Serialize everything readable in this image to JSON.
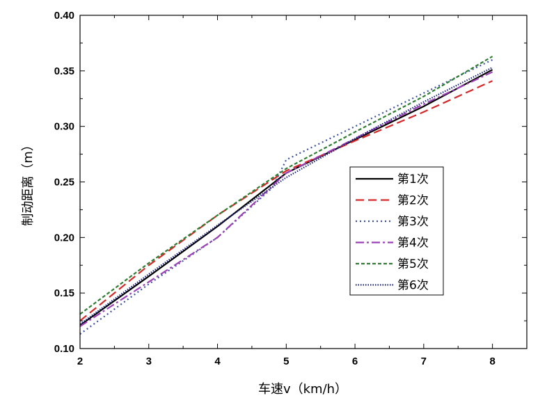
{
  "chart_data": {
    "type": "line",
    "title": "",
    "xlabel": "车速v（km/h）",
    "ylabel": "制动距离（m）",
    "xlim": [
      2,
      8.5
    ],
    "ylim": [
      0.1,
      0.4
    ],
    "x_ticks": [
      "2",
      "3",
      "4",
      "5",
      "6",
      "7",
      "8"
    ],
    "y_ticks": [
      "0.10",
      "0.15",
      "0.20",
      "0.25",
      "0.30",
      "0.35",
      "0.40"
    ],
    "legend_position": "right-center",
    "series": [
      {
        "name": "第1次",
        "color": "#000000",
        "dash": "solid",
        "x": [
          2,
          3,
          4,
          5,
          6,
          7,
          8
        ],
        "y": [
          0.121,
          0.165,
          0.21,
          0.258,
          0.288,
          0.318,
          0.351
        ]
      },
      {
        "name": "第2次",
        "color": "#d62728",
        "dash": "dash",
        "x": [
          2,
          3,
          4,
          5,
          6,
          7,
          8
        ],
        "y": [
          0.125,
          0.175,
          0.22,
          0.26,
          0.287,
          0.313,
          0.341
        ]
      },
      {
        "name": "第3次",
        "color": "#3a4fa0",
        "dash": "dot",
        "x": [
          2,
          3,
          4,
          4.8,
          5,
          6,
          7,
          8
        ],
        "y": [
          0.113,
          0.158,
          0.2,
          0.245,
          0.27,
          0.3,
          0.33,
          0.36
        ]
      },
      {
        "name": "第4次",
        "color": "#9b3fb5",
        "dash": "dashdot",
        "x": [
          2,
          3,
          4,
          5,
          6,
          7,
          8
        ],
        "y": [
          0.12,
          0.16,
          0.2,
          0.258,
          0.289,
          0.32,
          0.349
        ]
      },
      {
        "name": "第5次",
        "color": "#2e7d32",
        "dash": "shortdash",
        "x": [
          2,
          3,
          4,
          5,
          6,
          7,
          8
        ],
        "y": [
          0.131,
          0.177,
          0.22,
          0.262,
          0.295,
          0.327,
          0.363
        ]
      },
      {
        "name": "第6次",
        "color": "#1a237e",
        "dash": "densedot",
        "x": [
          2,
          3,
          4,
          5,
          6,
          7,
          8
        ],
        "y": [
          0.122,
          0.167,
          0.211,
          0.254,
          0.289,
          0.322,
          0.353
        ]
      }
    ]
  }
}
